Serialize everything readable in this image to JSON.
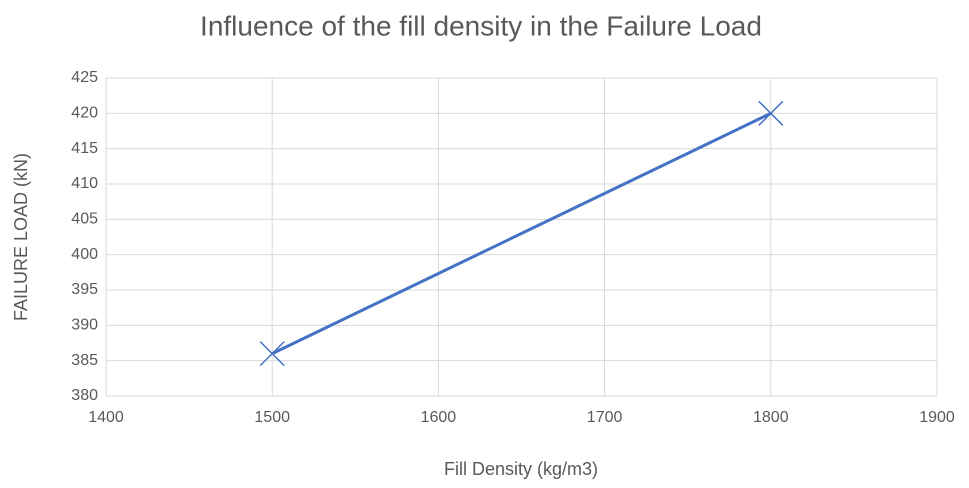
{
  "chart_data": {
    "type": "line",
    "title": "Influence of the fill density in the Failure Load",
    "xlabel": "Fill Density (kg/m3)",
    "ylabel": "FAILURE LOAD (kN)",
    "x": [
      1500,
      1800
    ],
    "series": [
      {
        "color": "#4472c4",
        "marker": "x",
        "values": [
          386,
          420
        ]
      }
    ],
    "xlim": [
      1400,
      1900
    ],
    "xticks": [
      1400,
      1500,
      1600,
      1700,
      1800,
      1900
    ],
    "ylim": [
      380,
      425
    ],
    "yticks": [
      380,
      385,
      390,
      395,
      400,
      405,
      410,
      415,
      420,
      425
    ],
    "grid": true
  }
}
